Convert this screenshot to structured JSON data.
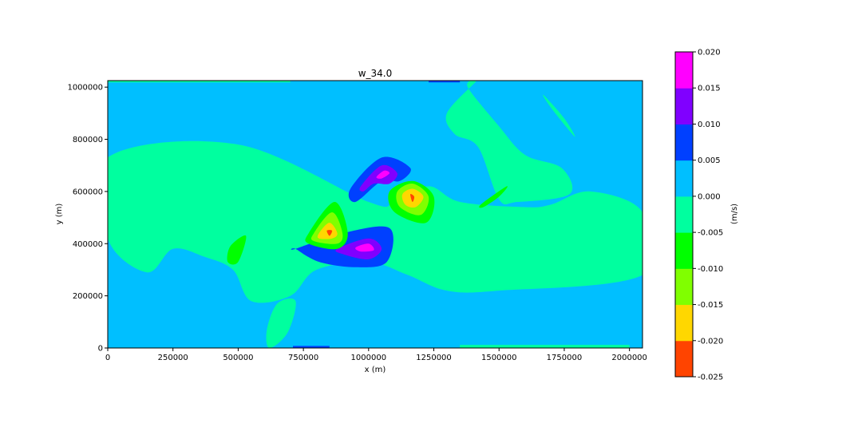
{
  "chart_data": {
    "type": "contourf",
    "title": "w_34.0",
    "xlabel": "x (m)",
    "ylabel": "y (m)",
    "xlim": [
      0,
      2050000
    ],
    "ylim": [
      0,
      1025000
    ],
    "xticks": [
      0,
      250000,
      500000,
      750000,
      1000000,
      1250000,
      1500000,
      1750000,
      2000000
    ],
    "yticks": [
      0,
      200000,
      400000,
      600000,
      800000,
      1000000
    ],
    "colorbar": {
      "label": "(m/s)",
      "levels": [
        -0.025,
        -0.02,
        -0.015,
        -0.01,
        -0.005,
        0.0,
        0.005,
        0.01,
        0.015,
        0.02
      ],
      "tick_labels": [
        "-0.025",
        "-0.020",
        "-0.015",
        "-0.010",
        "-0.005",
        "0.000",
        "0.005",
        "0.010",
        "0.015",
        "0.020"
      ],
      "colors": [
        "#ff4400",
        "#ffd700",
        "#80ff00",
        "#00ff00",
        "#00ff9f",
        "#00bfff",
        "#0040ff",
        "#8000ff",
        "#ff00ff"
      ]
    },
    "background_level_index": 5,
    "features": [
      {
        "level_index": 4,
        "x": [
          0,
          500000,
          1000000,
          1100000,
          1230000,
          1350000,
          1600000,
          1700000,
          1850000,
          2050000,
          2050000,
          1500000,
          1300000,
          1150000,
          1000000,
          800000,
          700000,
          550000,
          480000,
          370000,
          250000,
          150000,
          0
        ],
        "y": [
          730000,
          780000,
          560000,
          560000,
          620000,
          560000,
          540000,
          550000,
          600000,
          520000,
          280000,
          220000,
          220000,
          280000,
          330000,
          300000,
          200000,
          180000,
          300000,
          350000,
          380000,
          290000,
          420000
        ]
      },
      {
        "level_index": 4,
        "x": [
          1300000,
          1410000,
          1380000,
          1500000,
          1600000,
          1740000,
          1770000,
          1570000,
          1500000,
          1420000,
          1330000
        ],
        "y": [
          900000,
          1020000,
          1000000,
          850000,
          740000,
          690000,
          590000,
          560000,
          570000,
          770000,
          820000
        ]
      },
      {
        "level_index": 4,
        "x": [
          1670000,
          1750000,
          1790000,
          1700000
        ],
        "y": [
          970000,
          880000,
          810000,
          920000
        ]
      },
      {
        "level_index": 4,
        "x": [
          620000,
          690000,
          720000,
          650000,
          610000
        ],
        "y": [
          0,
          60000,
          180000,
          170000,
          70000
        ]
      },
      {
        "level_index": 4,
        "x": [
          1350000,
          2000000,
          2000000,
          1350000
        ],
        "y": [
          0,
          0,
          12000,
          12000
        ]
      },
      {
        "level_index": 4,
        "x": [
          0,
          700000,
          700000,
          0
        ],
        "y": [
          1018000,
          1018000,
          1025000,
          1025000
        ]
      },
      {
        "level_index": 3,
        "x": [
          470000,
          530000,
          500000,
          460000
        ],
        "y": [
          390000,
          430000,
          330000,
          330000
        ]
      },
      {
        "level_index": 3,
        "x": [
          1430000,
          1530000,
          1500000,
          1440000
        ],
        "y": [
          550000,
          620000,
          580000,
          540000
        ]
      },
      {
        "level_index": 6,
        "x": [
          720000,
          900000,
          1080000,
          1070000,
          950000,
          810000,
          720000
        ],
        "y": [
          380000,
          440000,
          460000,
          330000,
          310000,
          330000,
          380000
        ]
      },
      {
        "level_index": 7,
        "x": [
          880000,
          1000000,
          1050000,
          1000000,
          900000
        ],
        "y": [
          380000,
          420000,
          380000,
          340000,
          360000
        ]
      },
      {
        "level_index": 8,
        "x": [
          950000,
          1000000,
          1020000,
          970000
        ],
        "y": [
          385000,
          400000,
          375000,
          370000
        ]
      },
      {
        "level_index": 6,
        "x": [
          930000,
          1050000,
          1160000,
          1120000,
          1050000,
          950000
        ],
        "y": [
          610000,
          730000,
          690000,
          640000,
          640000,
          560000
        ]
      },
      {
        "level_index": 7,
        "x": [
          970000,
          1050000,
          1110000,
          1080000,
          1020000,
          980000
        ],
        "y": [
          620000,
          700000,
          670000,
          630000,
          630000,
          600000
        ]
      },
      {
        "level_index": 8,
        "x": [
          1030000,
          1060000,
          1080000,
          1050000
        ],
        "y": [
          655000,
          680000,
          670000,
          650000
        ]
      },
      {
        "level_index": 3,
        "x": [
          770000,
          870000,
          920000,
          880000,
          770000
        ],
        "y": [
          440000,
          560000,
          440000,
          380000,
          400000
        ]
      },
      {
        "level_index": 2,
        "x": [
          790000,
          860000,
          900000,
          880000,
          790000
        ],
        "y": [
          440000,
          520000,
          440000,
          400000,
          410000
        ]
      },
      {
        "level_index": 1,
        "x": [
          810000,
          850000,
          880000,
          860000,
          810000
        ],
        "y": [
          440000,
          480000,
          440000,
          420000,
          420000
        ]
      },
      {
        "level_index": 0,
        "x": [
          840000,
          860000,
          850000
        ],
        "y": [
          450000,
          450000,
          430000
        ]
      },
      {
        "level_index": 3,
        "x": [
          1080000,
          1170000,
          1250000,
          1220000,
          1100000
        ],
        "y": [
          600000,
          640000,
          580000,
          480000,
          520000
        ]
      },
      {
        "level_index": 2,
        "x": [
          1110000,
          1170000,
          1230000,
          1200000,
          1120000
        ],
        "y": [
          600000,
          630000,
          580000,
          510000,
          540000
        ]
      },
      {
        "level_index": 1,
        "x": [
          1130000,
          1170000,
          1210000,
          1180000,
          1140000
        ],
        "y": [
          590000,
          610000,
          580000,
          540000,
          550000
        ]
      },
      {
        "level_index": 0,
        "x": [
          1160000,
          1175000,
          1168000
        ],
        "y": [
          590000,
          580000,
          560000
        ]
      },
      {
        "level_index": 6,
        "x": [
          710000,
          850000,
          850000,
          710000
        ],
        "y": [
          0,
          0,
          8000,
          8000
        ]
      },
      {
        "level_index": 6,
        "x": [
          1230000,
          1350000,
          1350000,
          1230000
        ],
        "y": [
          1018000,
          1018000,
          1025000,
          1025000
        ]
      }
    ]
  }
}
